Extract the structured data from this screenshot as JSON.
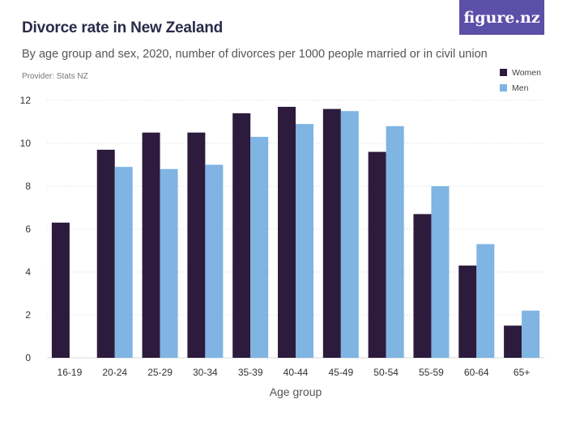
{
  "header": {
    "title": "Divorce rate in New Zealand",
    "subtitle": "By age group and sex, 2020, number of divorces per 1000 people married or in civil union",
    "provider": "Provider: Stats NZ",
    "logo": "figure.nz"
  },
  "colors": {
    "women": "#2d1b3d",
    "men": "#7fb4e3",
    "grid": "#d8d8d8",
    "logo_bg": "#5c4fa8"
  },
  "chart_data": {
    "type": "bar",
    "categories": [
      "16-19",
      "20-24",
      "25-29",
      "30-34",
      "35-39",
      "40-44",
      "45-49",
      "50-54",
      "55-59",
      "60-64",
      "65+"
    ],
    "series": [
      {
        "name": "Women",
        "values": [
          6.3,
          9.7,
          10.5,
          10.5,
          11.4,
          11.7,
          11.6,
          9.6,
          6.7,
          4.3,
          1.5
        ]
      },
      {
        "name": "Men",
        "values": [
          null,
          8.9,
          8.8,
          9.0,
          10.3,
          10.9,
          11.5,
          10.8,
          8.0,
          5.3,
          2.2
        ]
      }
    ],
    "xlabel": "Age group",
    "ylabel": "",
    "ylim": [
      0,
      12
    ],
    "yticks": [
      0,
      2,
      4,
      6,
      8,
      10,
      12
    ],
    "grid": true,
    "legend": "top-right"
  }
}
